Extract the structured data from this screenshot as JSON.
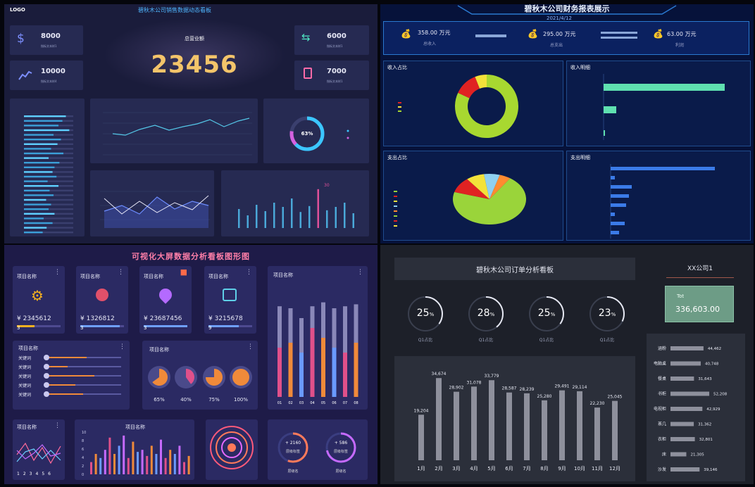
{
  "q1": {
    "logo": "LOGO",
    "title": "碧秋木公司销售数据动态看板",
    "kpis": [
      {
        "value": "8000",
        "label": "指标文本样1",
        "icon": "dollar-icon"
      },
      {
        "value": "10000",
        "label": "指标文本样4",
        "icon": "trend-chart-icon"
      },
      {
        "value": "6000",
        "label": "指标文本样1",
        "icon": "money-exchange-icon"
      },
      {
        "value": "7000",
        "label": "指标文本样1",
        "icon": "document-icon"
      }
    ],
    "total_label": "总营业额",
    "total_value": "23456",
    "donut_pct": "63%",
    "bar_peak_label": "30",
    "colors": {
      "accent": "#5fd0ff",
      "bar": "#4aa8d8",
      "highlight": "#e0509a"
    }
  },
  "q2": {
    "title": "碧秋木公司财务报表展示",
    "date": "2021/4/12",
    "stats": [
      {
        "value": "358.00 万元",
        "label": "总收入"
      },
      {
        "value": "295.00 万元",
        "label": "总支出"
      },
      {
        "value": "63.00 万元",
        "label": "利润"
      }
    ],
    "panels": {
      "income_ratio": "收入占比",
      "income_detail": "收入明细",
      "expense_ratio": "支出占比",
      "expense_detail": "支出明细"
    },
    "colors": {
      "pie_main": "#8ed32c",
      "pie_red": "#e02222",
      "bar_green": "#5fe0b0",
      "bar_blue": "#3b7be8"
    }
  },
  "q3": {
    "title": "可视化大屏数据分析看板图形图",
    "cards": [
      {
        "title": "项目名称",
        "value": "¥ 2345612",
        "icon": "gear-icon",
        "level": "3"
      },
      {
        "title": "项目名称",
        "value": "¥ 1326812",
        "icon": "coins-icon",
        "level": "3"
      },
      {
        "title": "项目名称",
        "value": "¥ 23687456",
        "icon": "location-pin-icon",
        "level": "3"
      },
      {
        "title": "项目名称",
        "value": "¥ 3215678",
        "icon": "circuit-icon",
        "level": "9"
      }
    ],
    "big_bar_title": "项目名称",
    "big_bar_categories": [
      "01",
      "02",
      "03",
      "04",
      "05",
      "06",
      "07",
      "08"
    ],
    "slider_title": "项目名称",
    "slider_label": "关键词",
    "pie_title": "项目名称",
    "pies": [
      "65%",
      "40%",
      "75%",
      "100%"
    ],
    "line_title": "项目名称",
    "line_x": [
      "1",
      "2",
      "3",
      "4",
      "5",
      "6"
    ],
    "bar2_title": "项目名称",
    "bar2_y": [
      "10",
      "8",
      "6",
      "4",
      "2",
      "0"
    ],
    "rings": [
      {
        "value": "+ 2160",
        "label": "层级标签"
      },
      {
        "value": "+ 586",
        "label": "层级标签"
      }
    ],
    "ring_caption": "层级名"
  },
  "q4": {
    "title": "碧秋木公司订单分析看板",
    "company": "XX公司1",
    "total_label": "Tot",
    "total_value": "336,603.00",
    "gauges": [
      {
        "value": "25",
        "unit": "%",
        "label": "Q1占比"
      },
      {
        "value": "28",
        "unit": "%",
        "label": "Q1占比"
      },
      {
        "value": "25",
        "unit": "%",
        "label": "Q1占比"
      },
      {
        "value": "23",
        "unit": "%",
        "label": "Q1占比"
      }
    ],
    "hbars": [
      {
        "label": "涵粉",
        "value": "44,462"
      },
      {
        "label": "电脑桌",
        "value": "40,748"
      },
      {
        "label": "餐桌",
        "value": "31,643"
      },
      {
        "label": "书柜",
        "value": "52,208"
      },
      {
        "label": "电视柜",
        "value": "42,929"
      },
      {
        "label": "茶几",
        "value": "31,362"
      },
      {
        "label": "衣柜",
        "value": "32,801"
      },
      {
        "label": "床",
        "value": "21,305"
      },
      {
        "label": "沙发",
        "value": "39,146"
      }
    ]
  },
  "chart_data": [
    {
      "type": "bar",
      "categories": [
        "1月",
        "2月",
        "3月",
        "4月",
        "5月",
        "6月",
        "7月",
        "8月",
        "9月",
        "10月",
        "11月",
        "12月"
      ],
      "values": [
        19204,
        34674,
        28902,
        31078,
        33779,
        28587,
        28239,
        25280,
        29491,
        29114,
        22230,
        25045
      ],
      "labels": [
        "19,204",
        "34,674",
        "28,902",
        "31,078",
        "33,779",
        "28,587",
        "28,239",
        "25,280",
        "29,491",
        "29,114",
        "22,230",
        "25,045"
      ],
      "ylim": [
        0,
        38000
      ]
    },
    {
      "type": "bar",
      "categories": [
        "01",
        "02",
        "03",
        "04",
        "05",
        "06",
        "07",
        "08"
      ],
      "series": [
        {
          "values": [
            0.92,
            0.9,
            0.8,
            0.92,
            0.96,
            0.9,
            0.92,
            0.94
          ]
        },
        {
          "values": [
            0.5,
            0.55,
            0.45,
            0.7,
            0.6,
            0.5,
            0.45,
            0.55
          ]
        }
      ]
    },
    {
      "type": "pie",
      "values": [
        82,
        12,
        6
      ]
    },
    {
      "type": "pie",
      "values": [
        70,
        10,
        8,
        7,
        5
      ]
    }
  ]
}
